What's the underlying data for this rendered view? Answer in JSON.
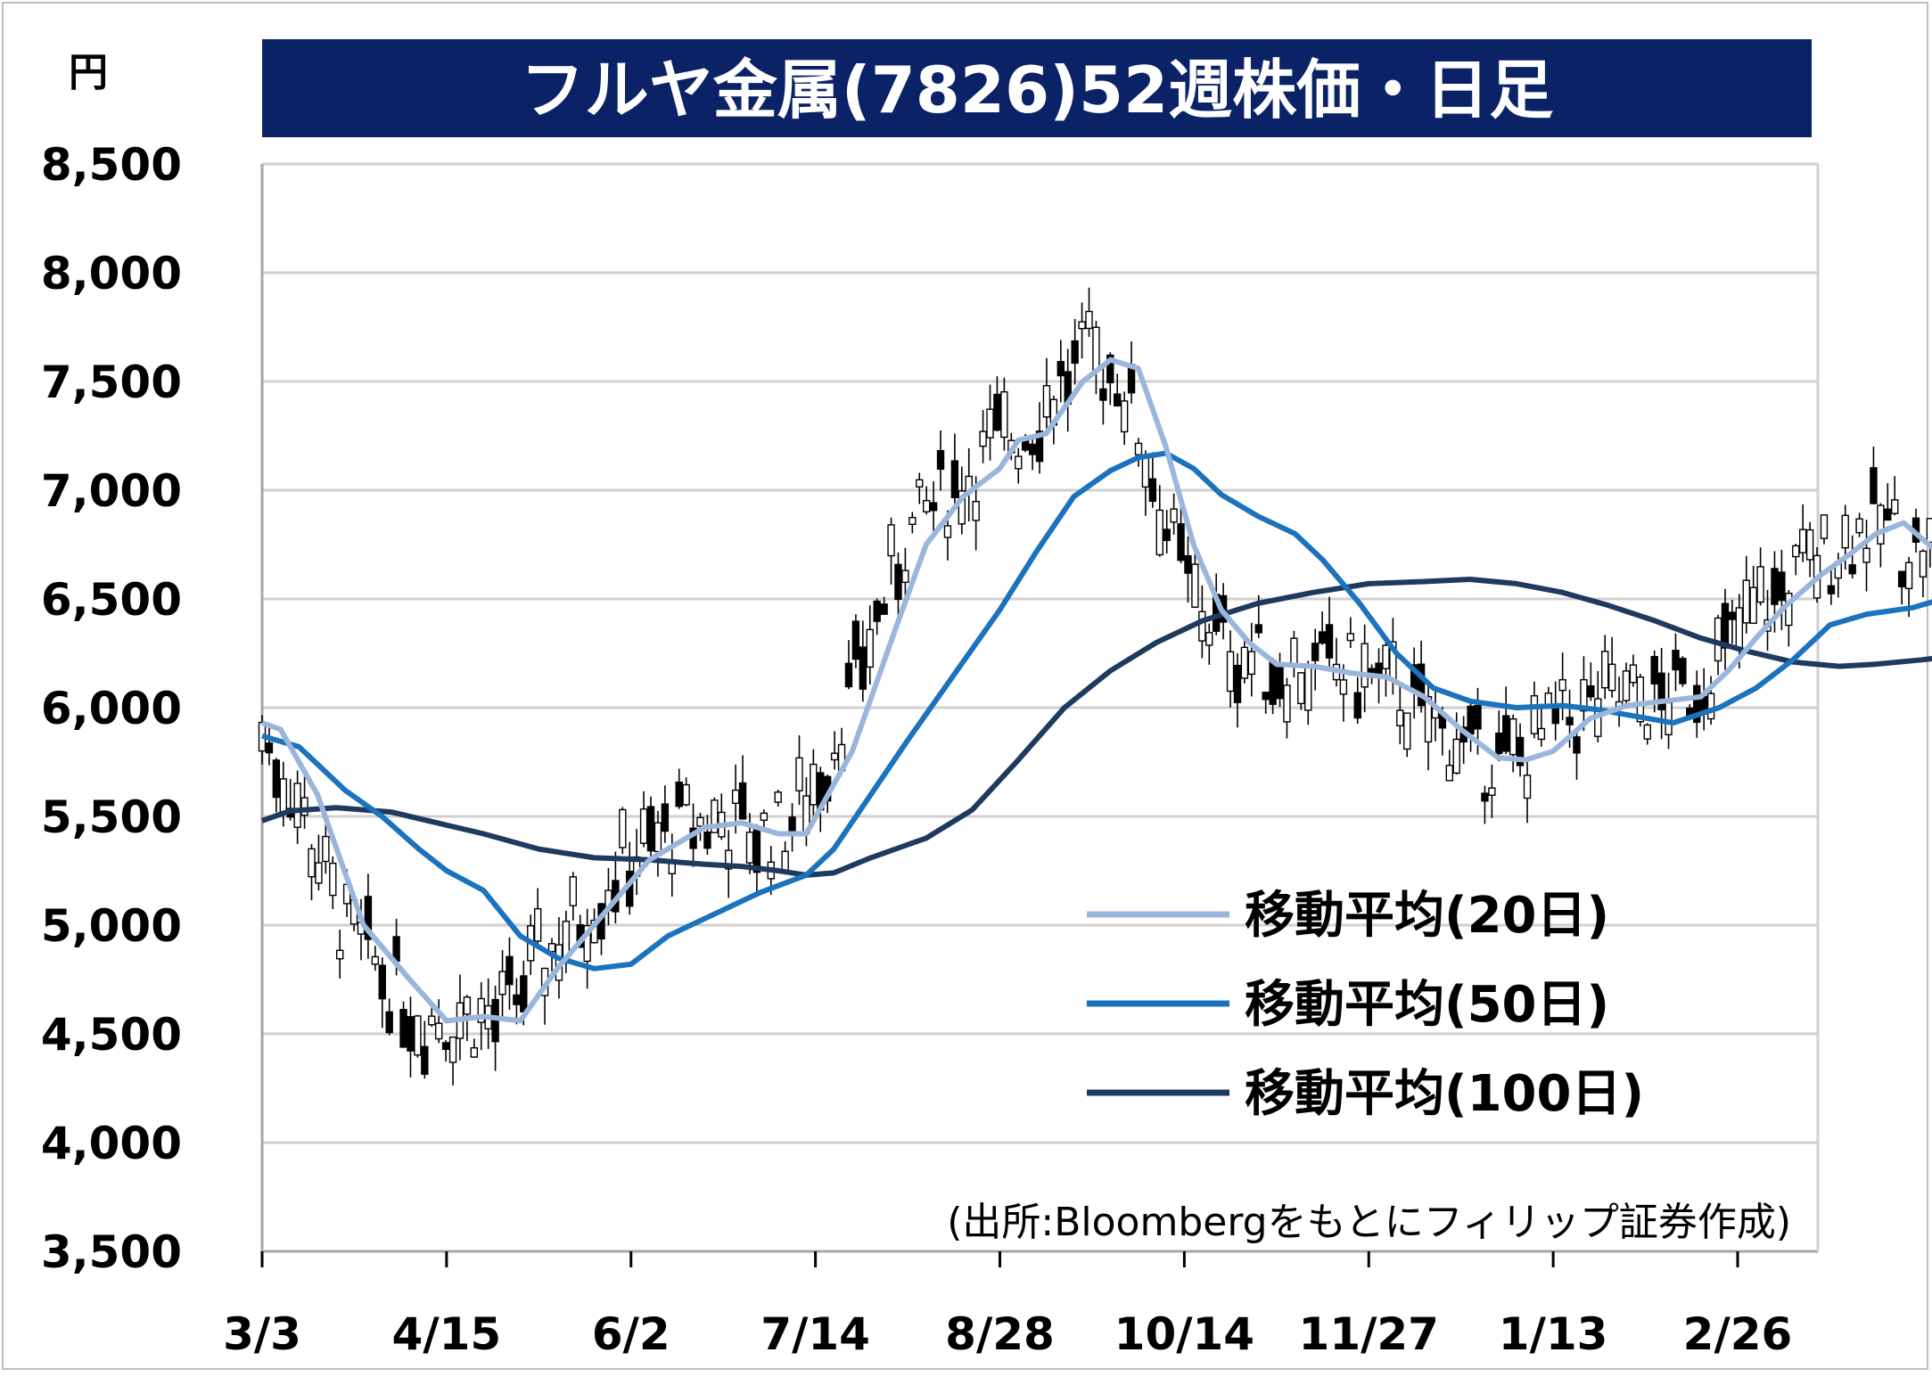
{
  "chart_data": {
    "type": "candlestick",
    "title": "フルヤ金属(7826)52週株価・日足",
    "unit_label": "円",
    "source": "(出所:Bloombergをもとにフィリップ証券作成)",
    "colors": {
      "title_bg": "#0b2366",
      "ma20": "#9ab6dc",
      "ma50": "#1b72bd",
      "ma100": "#1f3a5f",
      "candle": "#000000",
      "grid": "#d0d0d0"
    },
    "y_ticks": [
      "3,500",
      "4,000",
      "4,500",
      "5,000",
      "5,500",
      "6,000",
      "6,500",
      "7,000",
      "7,500",
      "8,000",
      "8,500"
    ],
    "ylim": [
      3500,
      8500
    ],
    "x_ticks": [
      "3/3",
      "4/15",
      "6/2",
      "7/14",
      "8/28",
      "10/14",
      "11/27",
      "1/13",
      "2/26"
    ],
    "legend": [
      {
        "key": "ma20",
        "label": "移動平均(20日)"
      },
      {
        "key": "ma50",
        "label": "移動平均(50日)"
      },
      {
        "key": "ma100",
        "label": "移動平均(100日)"
      }
    ],
    "ma20": [
      [
        0,
        5930
      ],
      [
        0.1,
        5900
      ],
      [
        0.3,
        5600
      ],
      [
        0.55,
        5000
      ],
      [
        0.8,
        4750
      ],
      [
        1.0,
        4560
      ],
      [
        1.2,
        4580
      ],
      [
        1.4,
        4560
      ],
      [
        1.6,
        4800
      ],
      [
        1.85,
        5050
      ],
      [
        2.1,
        5300
      ],
      [
        2.4,
        5450
      ],
      [
        2.6,
        5470
      ],
      [
        2.8,
        5420
      ],
      [
        2.95,
        5420
      ],
      [
        3.2,
        5800
      ],
      [
        3.45,
        6400
      ],
      [
        3.6,
        6750
      ],
      [
        3.8,
        6970
      ],
      [
        4.0,
        7100
      ],
      [
        4.1,
        7230
      ],
      [
        4.25,
        7260
      ],
      [
        4.45,
        7500
      ],
      [
        4.6,
        7600
      ],
      [
        4.75,
        7560
      ],
      [
        4.9,
        7200
      ],
      [
        5.05,
        6750
      ],
      [
        5.2,
        6450
      ],
      [
        5.35,
        6300
      ],
      [
        5.5,
        6200
      ],
      [
        5.7,
        6190
      ],
      [
        5.9,
        6160
      ],
      [
        6.1,
        6140
      ],
      [
        6.3,
        6050
      ],
      [
        6.5,
        5900
      ],
      [
        6.7,
        5770
      ],
      [
        6.85,
        5760
      ],
      [
        7.0,
        5800
      ],
      [
        7.2,
        5950
      ],
      [
        7.4,
        6010
      ],
      [
        7.6,
        6030
      ],
      [
        7.8,
        6050
      ],
      [
        7.95,
        6170
      ],
      [
        8.1,
        6320
      ],
      [
        8.25,
        6460
      ],
      [
        8.45,
        6610
      ],
      [
        8.6,
        6700
      ],
      [
        8.75,
        6800
      ],
      [
        8.9,
        6850
      ],
      [
        9.05,
        6740
      ],
      [
        9.25,
        6730
      ],
      [
        9.35,
        6720
      ]
    ],
    "ma50": [
      [
        0,
        5870
      ],
      [
        0.2,
        5820
      ],
      [
        0.45,
        5620
      ],
      [
        0.65,
        5500
      ],
      [
        0.85,
        5350
      ],
      [
        1.0,
        5250
      ],
      [
        1.2,
        5160
      ],
      [
        1.4,
        4950
      ],
      [
        1.6,
        4850
      ],
      [
        1.8,
        4800
      ],
      [
        2.0,
        4820
      ],
      [
        2.2,
        4950
      ],
      [
        2.45,
        5050
      ],
      [
        2.7,
        5150
      ],
      [
        2.95,
        5230
      ],
      [
        3.1,
        5350
      ],
      [
        3.3,
        5600
      ],
      [
        3.5,
        5850
      ],
      [
        3.75,
        6150
      ],
      [
        4.0,
        6450
      ],
      [
        4.2,
        6720
      ],
      [
        4.4,
        6970
      ],
      [
        4.6,
        7090
      ],
      [
        4.75,
        7150
      ],
      [
        4.9,
        7170
      ],
      [
        5.05,
        7100
      ],
      [
        5.2,
        6980
      ],
      [
        5.4,
        6880
      ],
      [
        5.6,
        6800
      ],
      [
        5.75,
        6680
      ],
      [
        5.95,
        6480
      ],
      [
        6.15,
        6250
      ],
      [
        6.35,
        6090
      ],
      [
        6.55,
        6030
      ],
      [
        6.8,
        6000
      ],
      [
        7.05,
        6010
      ],
      [
        7.25,
        5990
      ],
      [
        7.45,
        5960
      ],
      [
        7.65,
        5930
      ],
      [
        7.9,
        6000
      ],
      [
        8.1,
        6090
      ],
      [
        8.3,
        6220
      ],
      [
        8.5,
        6380
      ],
      [
        8.7,
        6430
      ],
      [
        8.95,
        6460
      ],
      [
        9.15,
        6510
      ],
      [
        9.35,
        6540
      ]
    ],
    "ma100": [
      [
        0,
        5480
      ],
      [
        0.15,
        5525
      ],
      [
        0.4,
        5540
      ],
      [
        0.7,
        5520
      ],
      [
        1.0,
        5460
      ],
      [
        1.2,
        5420
      ],
      [
        1.5,
        5350
      ],
      [
        1.8,
        5310
      ],
      [
        2.1,
        5300
      ],
      [
        2.4,
        5280
      ],
      [
        2.6,
        5270
      ],
      [
        2.8,
        5250
      ],
      [
        2.95,
        5230
      ],
      [
        3.1,
        5240
      ],
      [
        3.3,
        5310
      ],
      [
        3.6,
        5400
      ],
      [
        3.85,
        5530
      ],
      [
        4.1,
        5760
      ],
      [
        4.35,
        6000
      ],
      [
        4.6,
        6170
      ],
      [
        4.85,
        6300
      ],
      [
        5.1,
        6400
      ],
      [
        5.4,
        6480
      ],
      [
        5.7,
        6530
      ],
      [
        6.0,
        6570
      ],
      [
        6.3,
        6580
      ],
      [
        6.55,
        6590
      ],
      [
        6.8,
        6570
      ],
      [
        7.05,
        6530
      ],
      [
        7.3,
        6470
      ],
      [
        7.55,
        6400
      ],
      [
        7.8,
        6320
      ],
      [
        8.05,
        6260
      ],
      [
        8.3,
        6210
      ],
      [
        8.55,
        6190
      ],
      [
        8.75,
        6200
      ],
      [
        9.0,
        6220
      ],
      [
        9.2,
        6240
      ],
      [
        9.35,
        6260
      ]
    ]
  }
}
